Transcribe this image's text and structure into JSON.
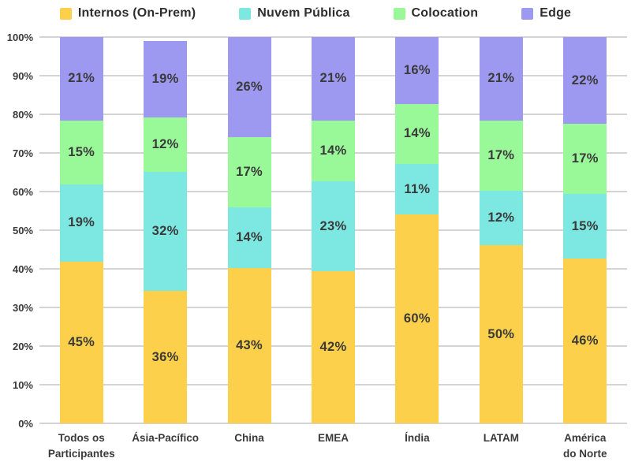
{
  "colors": {
    "background": "#ffffff",
    "gridline": "#d4d4d4",
    "label_text": "#3a3a3a",
    "legend_text": "#2e2e2e"
  },
  "chart_data": {
    "type": "bar",
    "variant": "stacked-percent-column",
    "title": "",
    "xlabel": "",
    "ylabel": "",
    "ylim": [
      0,
      100
    ],
    "grid": true,
    "legend_position": "top",
    "yticks": [
      "0%",
      "10%",
      "20%",
      "30%",
      "40%",
      "50%",
      "60%",
      "70%",
      "80%",
      "90%",
      "100%"
    ],
    "categories": [
      "Todos os\nParticipantes",
      "Ásia-Pacífico",
      "China",
      "EMEA",
      "Índia",
      "LATAM",
      "América\ndo Norte"
    ],
    "series": [
      {
        "name": "Internos (On-Prem)",
        "color": "#fdd04b",
        "values": [
          45,
          36,
          43,
          42,
          60,
          50,
          46
        ]
      },
      {
        "name": "Nuvem Pública",
        "color": "#7de8e1",
        "values": [
          19,
          32,
          14,
          23,
          11,
          12,
          15
        ]
      },
      {
        "name": "Colocation",
        "color": "#99f898",
        "values": [
          15,
          12,
          17,
          14,
          14,
          17,
          17
        ]
      },
      {
        "name": "Edge",
        "color": "#9d98f0",
        "values": [
          21,
          19,
          26,
          21,
          16,
          21,
          22
        ]
      }
    ],
    "value_label_format": "{value}%"
  }
}
